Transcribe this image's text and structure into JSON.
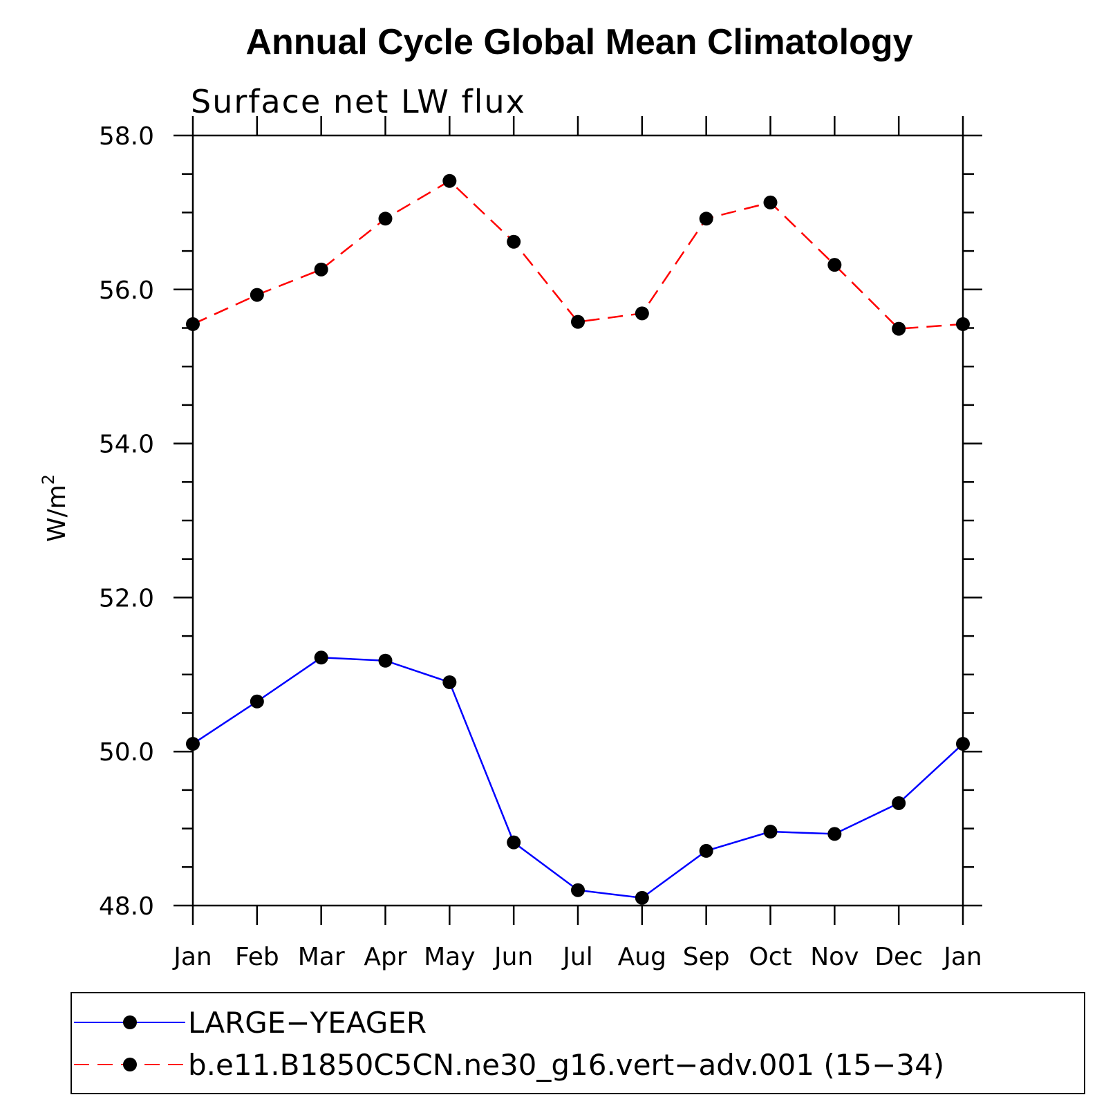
{
  "chart_data": {
    "type": "line",
    "title": "Annual Cycle Global Mean Climatology",
    "subtitle": "Surface net LW flux",
    "ylabel": "W/m",
    "ylabel_sup": "2",
    "xlabel": "",
    "categories": [
      "Jan",
      "Feb",
      "Mar",
      "Apr",
      "May",
      "Jun",
      "Jul",
      "Aug",
      "Sep",
      "Oct",
      "Nov",
      "Dec",
      "Jan"
    ],
    "ylim": [
      48.0,
      58.0
    ],
    "yticks": [
      "48.0",
      "50.0",
      "52.0",
      "54.0",
      "56.0",
      "58.0"
    ],
    "grid": false,
    "legend": "bottom",
    "series": [
      {
        "name": "LARGE−YEAGER",
        "color": "#0000ff",
        "style": "solid",
        "values": [
          50.1,
          50.65,
          51.22,
          51.18,
          50.9,
          48.82,
          48.2,
          48.1,
          48.71,
          48.96,
          48.93,
          49.33,
          50.1
        ]
      },
      {
        "name": "b.e11.B1850C5CN.ne30_g16.vert−adv.001 (15−34)",
        "color": "#ff0000",
        "style": "dashed",
        "values": [
          55.55,
          55.93,
          56.26,
          56.92,
          57.41,
          56.62,
          55.58,
          55.69,
          56.92,
          57.13,
          56.32,
          55.49,
          55.55
        ]
      }
    ]
  }
}
